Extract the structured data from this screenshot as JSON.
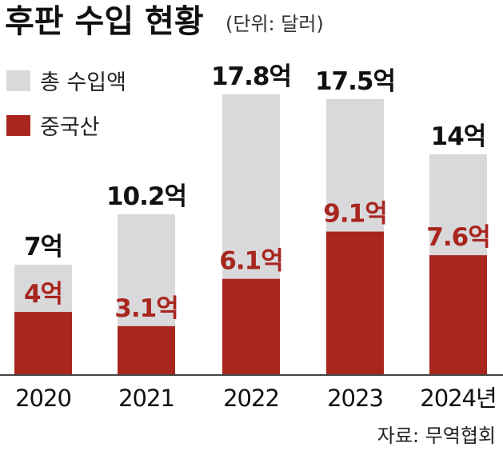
{
  "colors": {
    "total": "#d9d9dc",
    "china": "#a8261e",
    "axis": "#444444"
  },
  "chart_data": {
    "type": "bar",
    "title": "후판 수입 현황",
    "unit": "(단위: 달러)",
    "categories": [
      "2020",
      "2021",
      "2022",
      "2023",
      "2024년"
    ],
    "series": [
      {
        "name": "총 수입액",
        "values": [
          7,
          10.2,
          17.8,
          17.5,
          14
        ],
        "labels": [
          "7억",
          "10.2억",
          "17.8억",
          "17.5억",
          "14억"
        ]
      },
      {
        "name": "중국산",
        "values": [
          4,
          3.1,
          6.1,
          9.1,
          7.6
        ],
        "labels": [
          "4억",
          "3.1억",
          "6.1억",
          "9.1억",
          "7.6억"
        ]
      }
    ],
    "ylim": [
      0,
      17.8
    ],
    "grid": false,
    "legend": "top-left",
    "source": "자료: 무역협회"
  }
}
